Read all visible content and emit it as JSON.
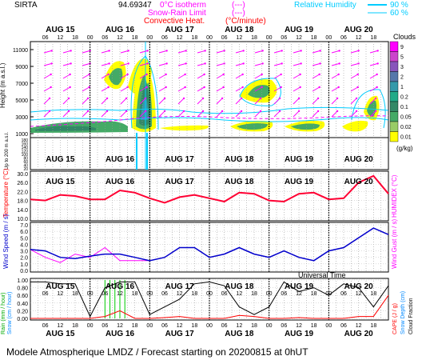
{
  "header": {
    "station": "SIRTA",
    "coords": "94.69347",
    "legend": {
      "isotherm": "0°C isotherm",
      "snow_rain": "Snow-Rain Limit",
      "convective": "Convective Heat.",
      "convective_unit": "(°C/minute)",
      "dash_hint": "(---)",
      "rh_label": "Relative Humidity",
      "rh90": "90 %",
      "rh60": "60 %"
    }
  },
  "time_axis": {
    "days": [
      "AUG 15",
      "AUG 16",
      "AUG 17",
      "AUG 18",
      "AUG 19",
      "AUG 20"
    ],
    "hours": [
      "06",
      "12",
      "18",
      "00"
    ],
    "xlabel": "Universal Time"
  },
  "panel_clouds": {
    "ylabel": "Height (m a.s.l.)",
    "ylabel_low": "Up to 200 m a.s.l.",
    "upper_ticks": [
      "11000",
      "9000",
      "7000",
      "5000",
      "3000",
      "1000"
    ],
    "lower_ticks": [
      "180",
      "160",
      "140",
      "120",
      "100",
      "80",
      "60",
      "40",
      "20"
    ],
    "colorbar_title": "Clouds",
    "colorbar_ticks": [
      "9",
      "5",
      "3",
      "2",
      "1",
      "0.2",
      "0.1",
      "0.05",
      "0.02",
      "0.01"
    ],
    "colorbar_unit": "(g/kg)",
    "colors": [
      "#ff00ff",
      "#cc44cc",
      "#8855bb",
      "#5577aa",
      "#3399aa",
      "#22aa88",
      "#338866",
      "#44aa66",
      "#99cc66",
      "#ffff00"
    ]
  },
  "panel_temp": {
    "ylabel": "Temperature (°C)",
    "ylabel_right": "HUMIDEX (°C)",
    "ticks": [
      "30.0",
      "26.0",
      "22.0",
      "18.0",
      "14.0",
      "10.0"
    ],
    "color": "#ff0033"
  },
  "panel_wind": {
    "ylabel": "Wind Speed (m / s)",
    "ylabel_right": "Wind Gust (m / s)",
    "ticks": [
      "7.0",
      "6.0",
      "5.0",
      "4.0",
      "3.0",
      "2.0",
      "1.0",
      "0.0"
    ],
    "speed_color": "#0000cc",
    "gust_color": "#ff00ff"
  },
  "panel_precip": {
    "ylabel_rain": "Rain (mm / hour)",
    "ylabel_snow": "Snow (cm / hour)",
    "ylabel_right_cape": "CAPE (J / g)",
    "ylabel_right_snow": "Snow Depth (cm)",
    "ylabel_right_cloud": "Cloud Fraction",
    "ticks": [
      "1.00",
      "0.80",
      "0.60",
      "0.40",
      "0.20",
      "0.00"
    ]
  },
  "footer": {
    "text": "Modele Atmospherique LMDZ / Forecast starting on 20200815 at 0hUT"
  },
  "chart_data": [
    {
      "type": "line",
      "title": "",
      "ylabel": "Temperature (°C)",
      "x_hours": [
        0,
        6,
        12,
        18,
        24,
        30,
        36,
        42,
        48,
        54,
        60,
        66,
        72,
        78,
        84,
        90,
        96,
        102,
        108,
        114,
        120,
        126,
        132,
        138,
        144
      ],
      "series": [
        {
          "name": "Temperature",
          "values": [
            18.5,
            18.0,
            20.5,
            20.0,
            18.5,
            18.5,
            22.5,
            21.5,
            19.0,
            17.0,
            19.5,
            20.5,
            19.0,
            17.5,
            21.5,
            21.0,
            18.0,
            17.5,
            21.0,
            21.5,
            18.5,
            19.0,
            26.0,
            29.0,
            21.0
          ]
        }
      ],
      "ylim": [
        10,
        30
      ]
    },
    {
      "type": "line",
      "title": "",
      "ylabel": "Wind Speed (m / s)",
      "x_hours": [
        0,
        6,
        12,
        18,
        24,
        30,
        36,
        42,
        48,
        54,
        60,
        66,
        72,
        78,
        84,
        90,
        96,
        102,
        108,
        114,
        120,
        126,
        132,
        138,
        144
      ],
      "series": [
        {
          "name": "Wind Speed",
          "values": [
            3.2,
            3.0,
            2.0,
            1.8,
            2.2,
            2.5,
            2.5,
            2.0,
            1.5,
            2.0,
            3.5,
            3.5,
            2.0,
            2.5,
            3.5,
            2.5,
            2.0,
            3.0,
            2.0,
            1.5,
            3.0,
            3.5,
            5.0,
            6.5,
            5.5
          ]
        },
        {
          "name": "Wind Gust",
          "values": [
            3.2,
            2.0,
            1.2,
            2.5,
            2.0,
            3.5,
            1.5,
            1.5,
            1.5,
            2.0,
            3.5,
            3.5,
            2.0,
            2.5,
            3.5,
            2.5,
            2.0,
            3.0,
            2.0,
            1.5,
            3.0,
            3.5,
            5.0,
            6.5,
            5.5
          ]
        }
      ],
      "ylim": [
        0,
        7
      ]
    },
    {
      "type": "line",
      "title": "",
      "ylabel": "Rain (mm / hour)",
      "x_hours": [
        0,
        6,
        12,
        18,
        24,
        30,
        36,
        42,
        48,
        54,
        60,
        66,
        72,
        78,
        84,
        90,
        96,
        102,
        108,
        114,
        120,
        126,
        132,
        138,
        144
      ],
      "series": [
        {
          "name": "Cloud Fraction",
          "values": [
            0.95,
            0.95,
            0.9,
            0.9,
            0.05,
            0.8,
            0.95,
            0.95,
            0.1,
            0.3,
            0.5,
            0.9,
            0.95,
            0.85,
            0.3,
            0.1,
            0.3,
            0.95,
            0.7,
            0.8,
            0.6,
            0.9,
            0.8,
            0.3,
            0.85
          ]
        },
        {
          "name": "CAPE",
          "values": [
            0,
            0,
            0,
            0,
            0,
            0.05,
            0.2,
            0,
            0,
            0.02,
            0.05,
            0,
            0,
            0,
            0.08,
            0.05,
            0,
            0,
            0.02,
            0,
            0,
            0,
            0.05,
            0.05,
            0.6
          ]
        }
      ],
      "ylim": [
        0,
        1
      ]
    }
  ]
}
